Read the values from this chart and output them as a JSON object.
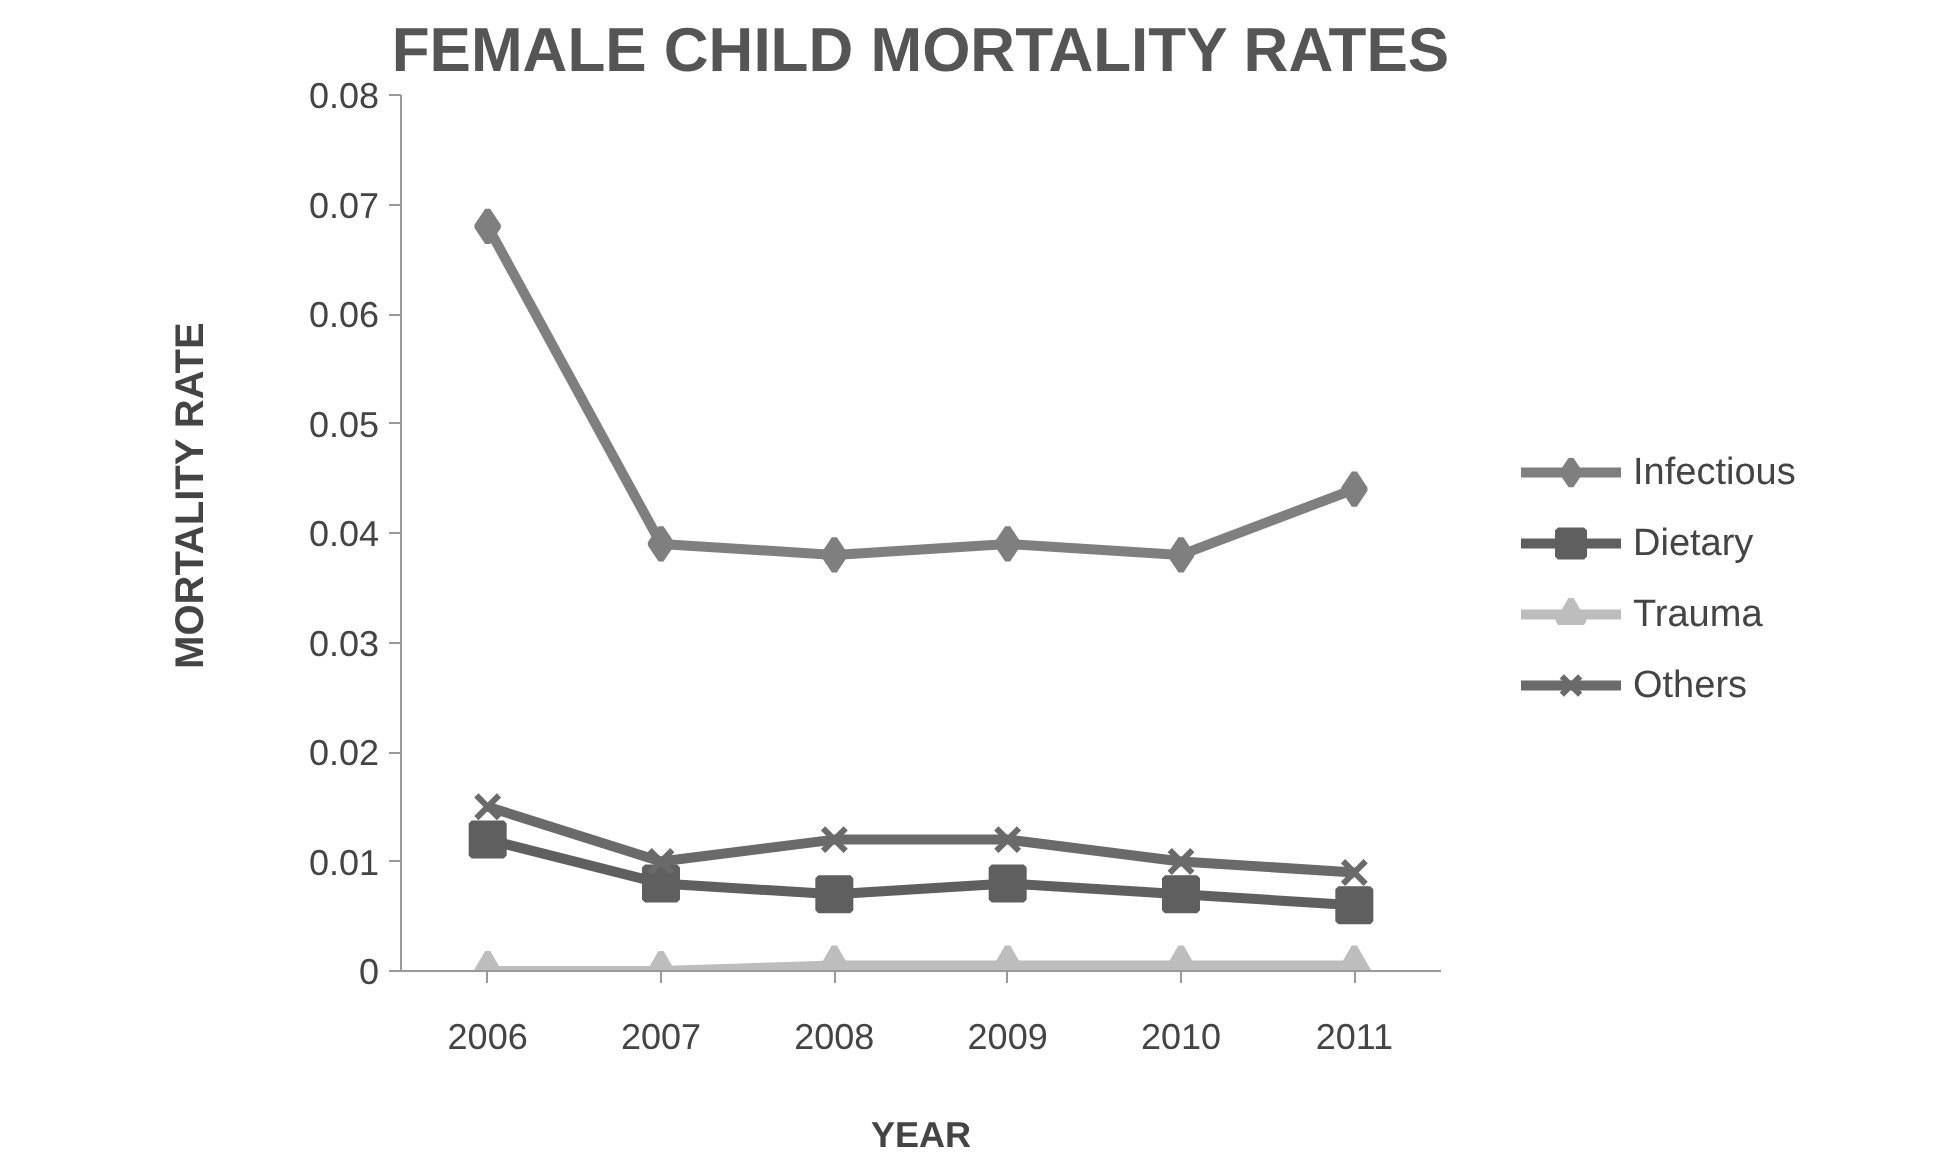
{
  "chart_data": {
    "type": "line",
    "title": "FEMALE CHILD MORTALITY RATES",
    "xlabel": "YEAR",
    "ylabel": "MORTALITY RATE",
    "categories": [
      "2006",
      "2007",
      "2008",
      "2009",
      "2010",
      "2011"
    ],
    "series": [
      {
        "name": "Infectious",
        "color": "#7f7f7f",
        "marker": "diamond",
        "values": [
          0.068,
          0.039,
          0.038,
          0.039,
          0.038,
          0.044
        ]
      },
      {
        "name": "Dietary",
        "color": "#5f5f5f",
        "marker": "square",
        "values": [
          0.012,
          0.008,
          0.007,
          0.008,
          0.007,
          0.006
        ]
      },
      {
        "name": "Trauma",
        "color": "#bdbdbd",
        "marker": "triangle",
        "values": [
          0.0,
          0.0,
          0.0005,
          0.0005,
          0.0005,
          0.0005
        ]
      },
      {
        "name": "Others",
        "color": "#6a6a6a",
        "marker": "x",
        "values": [
          0.015,
          0.01,
          0.012,
          0.012,
          0.01,
          0.009
        ]
      }
    ],
    "ylim": [
      0,
      0.08
    ],
    "yticks": [
      0,
      0.01,
      0.02,
      0.03,
      0.04,
      0.05,
      0.06,
      0.07,
      0.08
    ],
    "grid": false,
    "legend": "right",
    "line_style": "solid"
  }
}
